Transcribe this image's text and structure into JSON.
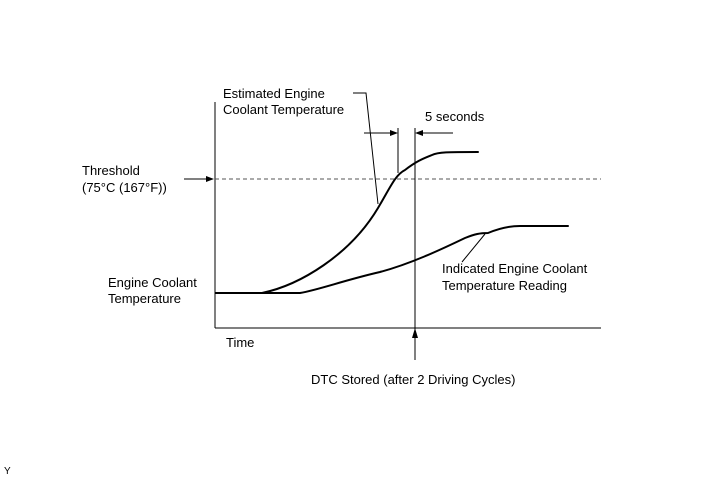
{
  "labels": {
    "estimated_line1": "Estimated Engine",
    "estimated_line2": "Coolant Temperature",
    "five_seconds": "5 seconds",
    "threshold_line1": "Threshold",
    "threshold_line2": "(75°C (167°F))",
    "engine_coolant_line1": "Engine Coolant",
    "engine_coolant_line2": "Temperature",
    "indicated_line1": "Indicated Engine Coolant",
    "indicated_line2": "Temperature Reading",
    "time_axis": "Time",
    "dtc_stored": "DTC Stored (after 2 Driving Cycles)",
    "corner_mark": "Y"
  },
  "colors": {
    "line": "#000000",
    "threshold_dash": "#555555",
    "background": "#ffffff"
  }
}
